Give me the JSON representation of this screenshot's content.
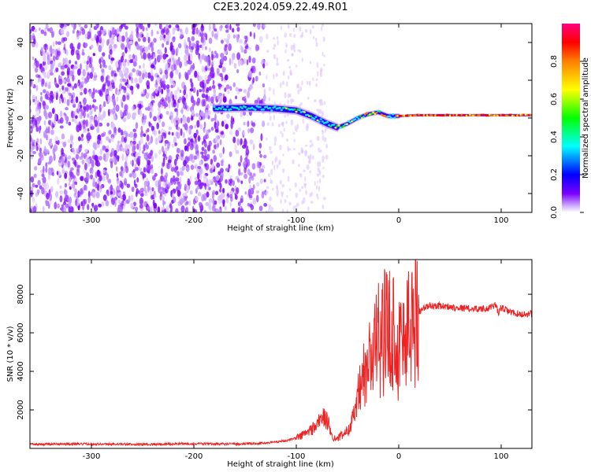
{
  "title": "C2E3.2024.059.22.49.R01",
  "chart_data": [
    {
      "type": "heatmap",
      "xlabel": "Height of straight line (km)",
      "ylabel": "Frequency (Hz)",
      "xlim": [
        -360,
        130
      ],
      "ylim": [
        -50,
        50
      ],
      "xticks": [
        -300,
        -200,
        -100,
        0,
        100
      ],
      "yticks": [
        -40,
        -20,
        0,
        20,
        40
      ],
      "colorbar": {
        "label": "Normalized spectral amplitude",
        "range": [
          0,
          1
        ],
        "ticks": [
          "0.0",
          "0.2",
          "0.4",
          "0.6",
          "0.8"
        ],
        "colors": [
          "#ffffff",
          "#c8a0ff",
          "#7a00ff",
          "#0000ff",
          "#00ffff",
          "#00ff00",
          "#ffff00",
          "#ff8000",
          "#ff0000",
          "#ff0080"
        ]
      },
      "features": {
        "noise_region_x": [
          -360,
          -130
        ],
        "sparse_region_x": [
          -130,
          -70
        ],
        "signal_trace": {
          "x": [
            -180,
            -150,
            -120,
            -100,
            -85,
            -70,
            -60,
            -50,
            -40,
            -30,
            -20,
            -10,
            0,
            20,
            50,
            80,
            100,
            130
          ],
          "y": [
            5,
            5.5,
            5,
            4,
            1,
            -3,
            -5,
            -3,
            0,
            2,
            3,
            1,
            1,
            1.5,
            1.5,
            1.5,
            1.5,
            1.5
          ]
        }
      }
    },
    {
      "type": "line",
      "xlabel": "Height of straight line (km)",
      "ylabel": "SNR (10 * v/v)",
      "xlim": [
        -360,
        130
      ],
      "ylim": [
        0,
        9800
      ],
      "xticks": [
        -300,
        -200,
        -100,
        0,
        100
      ],
      "yticks": [
        2000,
        4000,
        6000,
        8000
      ],
      "color": "#ee2222",
      "series": [
        {
          "x": [
            -360,
            -300,
            -250,
            -200,
            -150,
            -130,
            -110,
            -100,
            -90,
            -80,
            -75,
            -70,
            -67,
            -65,
            -60,
            -55,
            -50,
            -45,
            -40,
            -35,
            -30,
            -25,
            -20,
            -15,
            -10,
            -6,
            -2,
            0,
            5,
            10,
            15,
            20,
            25,
            30,
            40,
            50,
            60,
            70,
            80,
            90,
            95,
            97,
            100,
            110,
            120,
            130
          ],
          "y": [
            220,
            230,
            210,
            240,
            230,
            280,
            400,
            550,
            800,
            1200,
            1700,
            1400,
            1100,
            600,
            500,
            700,
            900,
            1500,
            2400,
            3500,
            4200,
            5000,
            5600,
            6000,
            6200,
            6400,
            5000,
            5300,
            5800,
            6300,
            6700,
            7100,
            7300,
            7400,
            7400,
            7350,
            7300,
            7250,
            7250,
            7300,
            7500,
            7000,
            7300,
            7050,
            6950,
            7000
          ]
        }
      ]
    }
  ]
}
